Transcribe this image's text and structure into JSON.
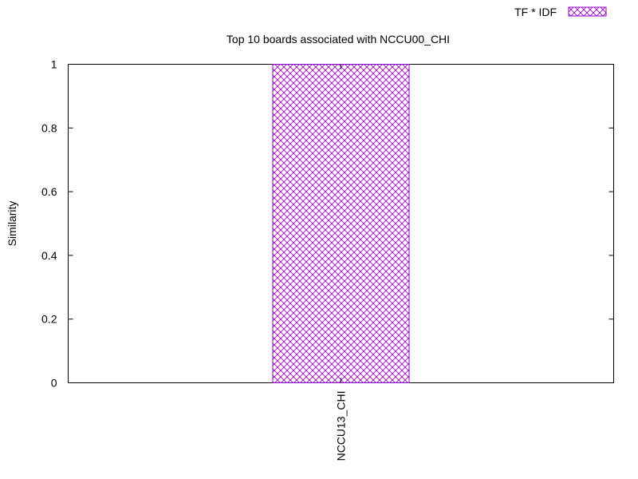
{
  "chart_data": {
    "type": "bar",
    "title": "Top 10 boards associated with NCCU00_CHI",
    "xlabel": "",
    "ylabel": "Similarity",
    "categories": [
      "NCCU13_CHI"
    ],
    "series": [
      {
        "name": "TF * IDF",
        "values": [
          1
        ],
        "color": "#9400d3",
        "fill": "crosshatch"
      }
    ],
    "ylim": [
      0,
      1
    ],
    "yticks": [
      "0",
      "0.2",
      "0.4",
      "0.6",
      "0.8",
      "1"
    ],
    "grid": false,
    "legend_position": "top-right",
    "x_tick_rotation": "vertical"
  }
}
